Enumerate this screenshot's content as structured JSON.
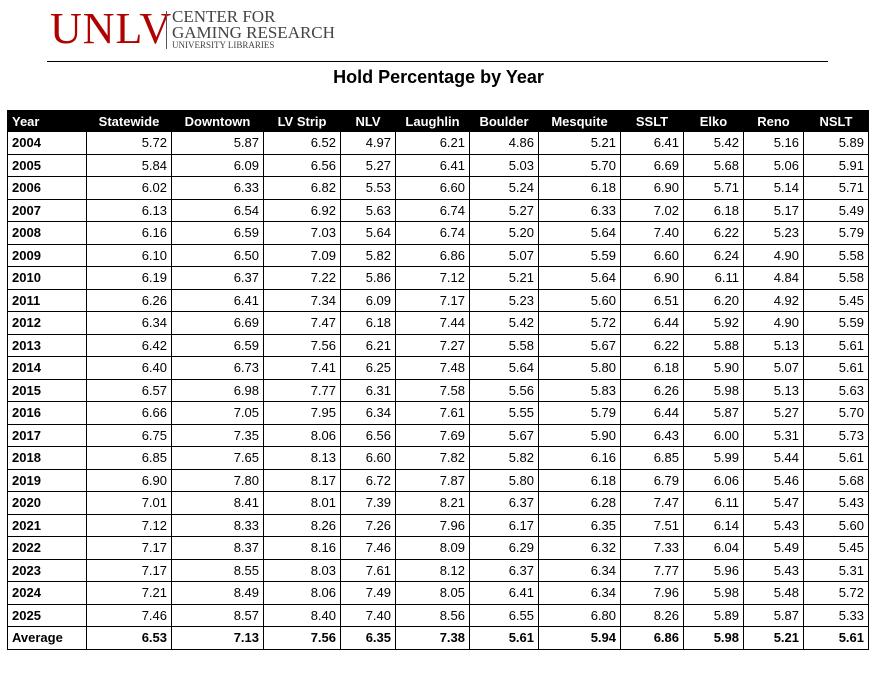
{
  "header": {
    "logo": "UNLV",
    "org_line1": "CENTER FOR",
    "org_line2": "GAMING RESEARCH",
    "org_line3": "UNIVERSITY LIBRARIES"
  },
  "title": "Hold Percentage by Year",
  "table": {
    "columns": [
      "Year",
      "Statewide",
      "Downtown",
      "LV Strip",
      "NLV",
      "Laughlin",
      "Boulder",
      "Mesquite",
      "SSLT",
      "Elko",
      "Reno",
      "NSLT"
    ],
    "rows": [
      [
        "2004",
        "5.72",
        "5.87",
        "6.52",
        "4.97",
        "6.21",
        "4.86",
        "5.21",
        "6.41",
        "5.42",
        "5.16",
        "5.89"
      ],
      [
        "2005",
        "5.84",
        "6.09",
        "6.56",
        "5.27",
        "6.41",
        "5.03",
        "5.70",
        "6.69",
        "5.68",
        "5.06",
        "5.91"
      ],
      [
        "2006",
        "6.02",
        "6.33",
        "6.82",
        "5.53",
        "6.60",
        "5.24",
        "6.18",
        "6.90",
        "5.71",
        "5.14",
        "5.71"
      ],
      [
        "2007",
        "6.13",
        "6.54",
        "6.92",
        "5.63",
        "6.74",
        "5.27",
        "6.33",
        "7.02",
        "6.18",
        "5.17",
        "5.49"
      ],
      [
        "2008",
        "6.16",
        "6.59",
        "7.03",
        "5.64",
        "6.74",
        "5.20",
        "5.64",
        "7.40",
        "6.22",
        "5.23",
        "5.79"
      ],
      [
        "2009",
        "6.10",
        "6.50",
        "7.09",
        "5.82",
        "6.86",
        "5.07",
        "5.59",
        "6.60",
        "6.24",
        "4.90",
        "5.58"
      ],
      [
        "2010",
        "6.19",
        "6.37",
        "7.22",
        "5.86",
        "7.12",
        "5.21",
        "5.64",
        "6.90",
        "6.11",
        "4.84",
        "5.58"
      ],
      [
        "2011",
        "6.26",
        "6.41",
        "7.34",
        "6.09",
        "7.17",
        "5.23",
        "5.60",
        "6.51",
        "6.20",
        "4.92",
        "5.45"
      ],
      [
        "2012",
        "6.34",
        "6.69",
        "7.47",
        "6.18",
        "7.44",
        "5.42",
        "5.72",
        "6.44",
        "5.92",
        "4.90",
        "5.59"
      ],
      [
        "2013",
        "6.42",
        "6.59",
        "7.56",
        "6.21",
        "7.27",
        "5.58",
        "5.67",
        "6.22",
        "5.88",
        "5.13",
        "5.61"
      ],
      [
        "2014",
        "6.40",
        "6.73",
        "7.41",
        "6.25",
        "7.48",
        "5.64",
        "5.80",
        "6.18",
        "5.90",
        "5.07",
        "5.61"
      ],
      [
        "2015",
        "6.57",
        "6.98",
        "7.77",
        "6.31",
        "7.58",
        "5.56",
        "5.83",
        "6.26",
        "5.98",
        "5.13",
        "5.63"
      ],
      [
        "2016",
        "6.66",
        "7.05",
        "7.95",
        "6.34",
        "7.61",
        "5.55",
        "5.79",
        "6.44",
        "5.87",
        "5.27",
        "5.70"
      ],
      [
        "2017",
        "6.75",
        "7.35",
        "8.06",
        "6.56",
        "7.69",
        "5.67",
        "5.90",
        "6.43",
        "6.00",
        "5.31",
        "5.73"
      ],
      [
        "2018",
        "6.85",
        "7.65",
        "8.13",
        "6.60",
        "7.82",
        "5.82",
        "6.16",
        "6.85",
        "5.99",
        "5.44",
        "5.61"
      ],
      [
        "2019",
        "6.90",
        "7.80",
        "8.17",
        "6.72",
        "7.87",
        "5.80",
        "6.18",
        "6.79",
        "6.06",
        "5.46",
        "5.68"
      ],
      [
        "2020",
        "7.01",
        "8.41",
        "8.01",
        "7.39",
        "8.21",
        "6.37",
        "6.28",
        "7.47",
        "6.11",
        "5.47",
        "5.43"
      ],
      [
        "2021",
        "7.12",
        "8.33",
        "8.26",
        "7.26",
        "7.96",
        "6.17",
        "6.35",
        "7.51",
        "6.14",
        "5.43",
        "5.60"
      ],
      [
        "2022",
        "7.17",
        "8.37",
        "8.16",
        "7.46",
        "8.09",
        "6.29",
        "6.32",
        "7.33",
        "6.04",
        "5.49",
        "5.45"
      ],
      [
        "2023",
        "7.17",
        "8.55",
        "8.03",
        "7.61",
        "8.12",
        "6.37",
        "6.34",
        "7.77",
        "5.96",
        "5.43",
        "5.31"
      ],
      [
        "2024",
        "7.21",
        "8.49",
        "8.06",
        "7.49",
        "8.05",
        "6.41",
        "6.34",
        "7.96",
        "5.98",
        "5.48",
        "5.72"
      ],
      [
        "2025",
        "7.46",
        "8.57",
        "8.40",
        "7.40",
        "8.56",
        "6.55",
        "6.80",
        "8.26",
        "5.89",
        "5.87",
        "5.33"
      ]
    ],
    "average": [
      "Average",
      "6.53",
      "7.13",
      "7.56",
      "6.35",
      "7.38",
      "5.61",
      "5.94",
      "6.86",
      "5.98",
      "5.21",
      "5.61"
    ]
  }
}
